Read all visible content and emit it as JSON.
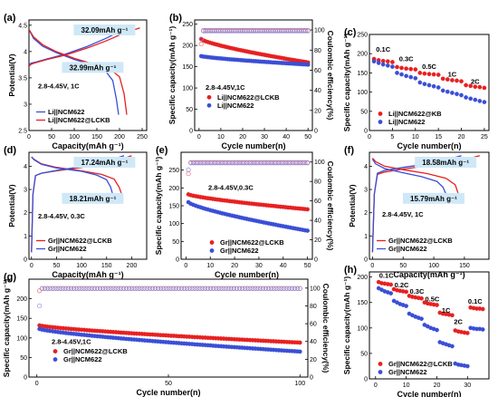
{
  "chart_data": [
    {
      "panel": "(a)",
      "type": "line",
      "xlabel": "Capacity(mAh g⁻¹)",
      "ylabel": "Potential(V)",
      "xlim": [
        0,
        260
      ],
      "ylim": [
        2.5,
        4.6
      ],
      "xticks": [
        0,
        50,
        100,
        150,
        200,
        250
      ],
      "yticks": [
        2.5,
        3.0,
        3.5,
        4.0,
        4.5
      ],
      "annotations": [
        "32.09mAh g⁻¹",
        "32.99mAh g⁻¹"
      ],
      "condition": "2.8-4.45V, 1C",
      "series": [
        {
          "name": "Li||NCM622",
          "color": "#3a4fd6",
          "charge": {
            "x": [
              0,
              5,
              15,
              40,
              80,
              130,
              170,
              200,
              220
            ],
            "y": [
              3.75,
              3.78,
              3.8,
              3.86,
              3.95,
              4.1,
              4.25,
              4.38,
              4.45
            ]
          },
          "discharge": {
            "x": [
              0,
              10,
              30,
              60,
              100,
              140,
              170,
              185,
              193,
              198
            ],
            "y": [
              4.42,
              4.25,
              4.1,
              3.98,
              3.85,
              3.75,
              3.62,
              3.45,
              3.1,
              2.8
            ]
          }
        },
        {
          "name": "Li||NCM622@LCKB",
          "color": "#e82020",
          "charge": {
            "x": [
              0,
              5,
              15,
              40,
              80,
              130,
              170,
              210,
              245
            ],
            "y": [
              3.72,
              3.76,
              3.79,
              3.85,
              3.93,
              4.07,
              4.2,
              4.35,
              4.45
            ]
          },
          "discharge": {
            "x": [
              0,
              10,
              30,
              60,
              100,
              140,
              180,
              200,
              210,
              216
            ],
            "y": [
              4.42,
              4.28,
              4.13,
              4.0,
              3.87,
              3.77,
              3.66,
              3.52,
              3.2,
              2.8
            ]
          }
        }
      ]
    },
    {
      "panel": "(b)",
      "type": "scatter",
      "xlabel": "Cycle number(n)",
      "ylabel": "Specific capacity(mAh g⁻¹)",
      "y2label": "Coulombic efficiency(%)",
      "xlim": [
        -2,
        52
      ],
      "ylim": [
        0,
        260
      ],
      "y2lim": [
        0,
        110
      ],
      "xticks": [
        0,
        10,
        20,
        30,
        40,
        50
      ],
      "yticks": [
        0,
        50,
        100,
        150,
        200,
        250
      ],
      "y2ticks": [
        0,
        20,
        40,
        60,
        80,
        100
      ],
      "condition": "2.8-4.45V,1C",
      "series": [
        {
          "name": "Li||NCM622@LCKB",
          "color": "#e82020",
          "axis": "left",
          "start": 215,
          "end": 160,
          "first": 215
        },
        {
          "name": "Li||NCM622",
          "color": "#3a4fd6",
          "axis": "left",
          "start": 175,
          "end": 155,
          "first": 175
        },
        {
          "name": "CE Li||NCM622@LCKB",
          "color": "#e87070",
          "axis": "right",
          "hollow": true,
          "start": 99.5,
          "end": 99.5,
          "first": 86
        },
        {
          "name": "CE Li||NCM622",
          "color": "#8f8fe0",
          "axis": "right",
          "hollow": true,
          "start": 99,
          "end": 99,
          "first": 91
        }
      ],
      "n": 50
    },
    {
      "panel": "(c)",
      "type": "scatter",
      "xlabel": "Cycle number(n)",
      "ylabel": "Specific capacity(mAh g⁻¹)",
      "xlim": [
        0,
        26
      ],
      "ylim": [
        0,
        250
      ],
      "xticks": [
        0,
        5,
        10,
        15,
        20,
        25
      ],
      "yticks": [
        0,
        50,
        100,
        150,
        200,
        250
      ],
      "rate_labels": [
        {
          "text": "0.1C",
          "x": 3,
          "y": 205
        },
        {
          "text": "0.3C",
          "x": 8,
          "y": 180
        },
        {
          "text": "0.5C",
          "x": 13,
          "y": 160
        },
        {
          "text": "1C",
          "x": 18,
          "y": 140
        },
        {
          "text": "2C",
          "x": 23,
          "y": 122
        }
      ],
      "series": [
        {
          "name": "Li||NCM622@KB",
          "color": "#e82020",
          "x": [
            1,
            2,
            3,
            4,
            5,
            6,
            7,
            8,
            9,
            10,
            11,
            12,
            13,
            14,
            15,
            16,
            17,
            18,
            19,
            20,
            21,
            22,
            23,
            24,
            25
          ],
          "y": [
            186,
            183,
            181,
            180,
            178,
            165,
            163,
            161,
            160,
            159,
            150,
            148,
            147,
            146,
            145,
            135,
            133,
            131,
            130,
            128,
            118,
            116,
            114,
            113,
            111
          ]
        },
        {
          "name": "Li||NCM622",
          "color": "#3a4fd6",
          "x": [
            1,
            2,
            3,
            4,
            5,
            6,
            7,
            8,
            9,
            10,
            11,
            12,
            13,
            14,
            15,
            16,
            17,
            18,
            19,
            20,
            21,
            22,
            23,
            24,
            25
          ],
          "y": [
            180,
            176,
            172,
            169,
            166,
            150,
            146,
            142,
            139,
            136,
            125,
            121,
            118,
            115,
            112,
            104,
            101,
            98,
            95,
            92,
            86,
            83,
            80,
            77,
            74
          ]
        }
      ]
    },
    {
      "panel": "(d)",
      "type": "line",
      "xlabel": "Capacity(mAh g⁻¹)",
      "ylabel": "Potential(V)",
      "xlim": [
        -5,
        230
      ],
      "ylim": [
        0,
        4.6
      ],
      "xticks": [
        0,
        50,
        100,
        150,
        200
      ],
      "yticks": [
        0,
        1,
        2,
        3,
        4
      ],
      "annotations": [
        "17.24mAh g⁻¹",
        "18.21mAh g⁻¹"
      ],
      "condition": "2.8-4.45V,  0.3C",
      "series": [
        {
          "name": "Gr||NCM622@LCKB",
          "color": "#e82020",
          "charge": {
            "x": [
              0,
              3,
              8,
              20,
              50,
              100,
              150,
              180,
              200
            ],
            "y": [
              0.3,
              2.8,
              3.6,
              3.7,
              3.8,
              3.95,
              4.15,
              4.3,
              4.45
            ]
          },
          "discharge": {
            "x": [
              0,
              5,
              20,
              50,
              100,
              140,
              165,
              175,
              180
            ],
            "y": [
              4.4,
              4.3,
              4.1,
              3.95,
              3.8,
              3.65,
              3.45,
              3.1,
              2.8
            ]
          }
        },
        {
          "name": "Gr||NCM622",
          "color": "#3a4fd6",
          "charge": {
            "x": [
              0,
              3,
              8,
              20,
              50,
              100,
              140,
              170,
              185
            ],
            "y": [
              0.3,
              2.8,
              3.6,
              3.7,
              3.82,
              3.98,
              4.18,
              4.35,
              4.45
            ]
          },
          "discharge": {
            "x": [
              0,
              5,
              20,
              50,
              100,
              130,
              150,
              158,
              162
            ],
            "y": [
              4.4,
              4.28,
              4.08,
              3.92,
              3.78,
              3.62,
              3.42,
              3.1,
              2.8
            ]
          }
        }
      ]
    },
    {
      "panel": "(e)",
      "type": "scatter",
      "xlabel": "Cycle number(n)",
      "ylabel": "Specific capacity(mAh g⁻¹)",
      "y2label": "Coulombic efficiency(%)",
      "xlim": [
        -2,
        52
      ],
      "ylim": [
        0,
        300
      ],
      "y2lim": [
        0,
        110
      ],
      "xticks": [
        0,
        10,
        20,
        30,
        40,
        50
      ],
      "yticks": [
        0,
        50,
        100,
        150,
        200,
        250
      ],
      "y2ticks": [
        0,
        20,
        40,
        60,
        80,
        100
      ],
      "condition": "2.8-4.45V,0.3C",
      "series": [
        {
          "name": "Gr||NCM622@LCKB",
          "color": "#e82020",
          "axis": "left",
          "start": 182,
          "end": 140,
          "first": 182
        },
        {
          "name": "Gr||NCM622",
          "color": "#3a4fd6",
          "axis": "left",
          "start": 160,
          "end": 80,
          "first": 160
        },
        {
          "name": "CE Gr||NCM622@LCKB",
          "color": "#e87070",
          "axis": "right",
          "hollow": true,
          "start": 99.5,
          "end": 99.5,
          "first": 88
        },
        {
          "name": "CE Gr||NCM622",
          "color": "#8f8fe0",
          "axis": "right",
          "hollow": true,
          "start": 99,
          "end": 99,
          "first": 92
        }
      ],
      "n": 50
    },
    {
      "panel": "(f)",
      "type": "line",
      "xlabel": "Capacity(mAh g⁻¹)",
      "ylabel": "Potential(V)",
      "xlim": [
        -5,
        190
      ],
      "ylim": [
        0,
        4.6
      ],
      "xticks": [
        0,
        50,
        100,
        150
      ],
      "yticks": [
        0,
        1,
        2,
        3,
        4
      ],
      "annotations": [
        "18.58mAh g⁻¹",
        "15.79mAh g⁻¹"
      ],
      "condition": "2.8-4.45V,  1C",
      "series": [
        {
          "name": "Gr||NCM622@LCKB",
          "color": "#e82020",
          "charge": {
            "x": [
              0,
              3,
              8,
              20,
              50,
              90,
              130,
              160,
              175
            ],
            "y": [
              0.3,
              2.8,
              3.65,
              3.75,
              3.88,
              4.02,
              4.2,
              4.35,
              4.45
            ]
          },
          "discharge": {
            "x": [
              0,
              5,
              20,
              50,
              90,
              120,
              135,
              140
            ],
            "y": [
              4.35,
              4.2,
              4.0,
              3.85,
              3.68,
              3.48,
              3.2,
              2.8
            ]
          }
        },
        {
          "name": "Gr||NCM622",
          "color": "#3a4fd6",
          "charge": {
            "x": [
              0,
              3,
              8,
              20,
              50,
              90,
              115,
              135,
              145
            ],
            "y": [
              0.3,
              2.8,
              3.7,
              3.82,
              3.95,
              4.1,
              4.25,
              4.38,
              4.45
            ]
          },
          "discharge": {
            "x": [
              0,
              5,
              20,
              50,
              80,
              105,
              115,
              120
            ],
            "y": [
              4.3,
              4.1,
              3.9,
              3.72,
              3.55,
              3.35,
              3.1,
              2.8
            ]
          }
        }
      ]
    },
    {
      "panel": "(g)",
      "type": "scatter",
      "xlabel": "Cycle number(n)",
      "ylabel": "Specific capacity(mAh g⁻¹)",
      "y2label": "Coulombic efficiency(%)",
      "xlim": [
        -3,
        103
      ],
      "ylim": [
        0,
        250
      ],
      "y2lim": [
        0,
        110
      ],
      "xticks": [
        0,
        50,
        100
      ],
      "yticks": [
        0,
        50,
        100,
        150,
        200
      ],
      "y2ticks": [
        0,
        20,
        40,
        60,
        80,
        100
      ],
      "condition": "2.8-4.45V,1C",
      "series": [
        {
          "name": "Gr||NCM622@LCKB",
          "color": "#e82020",
          "axis": "left",
          "start": 132,
          "end": 88,
          "first": 132
        },
        {
          "name": "Gr||NCM622",
          "color": "#3a4fd6",
          "axis": "left",
          "start": 123,
          "end": 65,
          "first": 123
        },
        {
          "name": "CE Gr||NCM622@LCKB",
          "color": "#e87070",
          "axis": "right",
          "hollow": true,
          "start": 99.6,
          "end": 99.6,
          "first": 97
        },
        {
          "name": "CE Gr||NCM622",
          "color": "#8f8fe0",
          "axis": "right",
          "hollow": true,
          "start": 99.3,
          "end": 99.3,
          "first": 80
        }
      ],
      "n": 100
    },
    {
      "panel": "(h)",
      "type": "scatter",
      "xlabel": "Cycle number(n)",
      "ylabel": "Specific capacity(mAh g⁻¹)",
      "xlim": [
        -2,
        37
      ],
      "ylim": [
        0,
        210
      ],
      "xticks": [
        0,
        10,
        20,
        30
      ],
      "yticks": [
        0,
        50,
        100,
        150,
        200
      ],
      "rate_labels": [
        {
          "text": "0.1C",
          "x": 3.5,
          "y": 198
        },
        {
          "text": "0.2C",
          "x": 8.5,
          "y": 180
        },
        {
          "text": "0.3C",
          "x": 13.5,
          "y": 167
        },
        {
          "text": "0.5C",
          "x": 18.5,
          "y": 152
        },
        {
          "text": "1C",
          "x": 23,
          "y": 130
        },
        {
          "text": "2C",
          "x": 27,
          "y": 108
        },
        {
          "text": "0.1C",
          "x": 32.5,
          "y": 148
        }
      ],
      "series": [
        {
          "name": "Gr||NCM622@LCKB",
          "color": "#e82020",
          "x": [
            1,
            2,
            3,
            4,
            5,
            6,
            7,
            8,
            9,
            10,
            11,
            12,
            13,
            14,
            15,
            16,
            17,
            18,
            19,
            20,
            21,
            22,
            23,
            24,
            25,
            26,
            27,
            28,
            29,
            30,
            31,
            32,
            33,
            34,
            35
          ],
          "y": [
            190,
            188,
            187,
            186,
            185,
            176,
            174,
            173,
            172,
            171,
            163,
            161,
            160,
            159,
            158,
            150,
            148,
            147,
            146,
            145,
            130,
            128,
            127,
            126,
            125,
            95,
            93,
            92,
            91,
            90,
            140,
            139,
            138,
            138,
            137
          ]
        },
        {
          "name": "Gr||NCM622",
          "color": "#3a4fd6",
          "x": [
            1,
            2,
            3,
            4,
            5,
            6,
            7,
            8,
            9,
            10,
            11,
            12,
            13,
            14,
            15,
            16,
            17,
            18,
            19,
            20,
            21,
            22,
            23,
            24,
            25,
            26,
            27,
            28,
            29,
            30,
            31,
            32,
            33,
            34,
            35
          ],
          "y": [
            178,
            175,
            172,
            170,
            168,
            153,
            150,
            147,
            145,
            143,
            128,
            125,
            122,
            120,
            118,
            106,
            103,
            100,
            98,
            96,
            72,
            70,
            68,
            66,
            64,
            30,
            28,
            27,
            26,
            25,
            100,
            99,
            98,
            98,
            97
          ]
        }
      ]
    }
  ]
}
